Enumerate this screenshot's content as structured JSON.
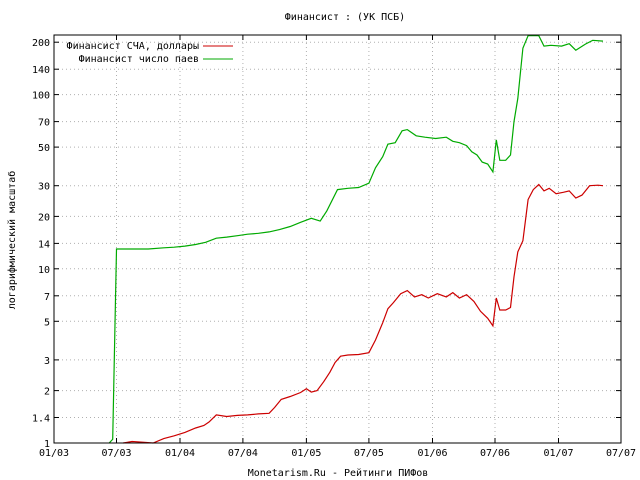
{
  "chart_data": {
    "type": "line",
    "title": "Финансист : (УК ПСБ)",
    "xlabel": "Monetarism.Ru - Рейтинги ПИФов",
    "ylabel": "логарифмический масштаб",
    "y_scale": "log",
    "ylim": [
      1,
      220
    ],
    "xlim": [
      "2003-01-01",
      "2007-07-01"
    ],
    "grid": true,
    "legend_position": "top-left",
    "x_ticks": [
      {
        "date": "2003-01-01",
        "label": "01/03"
      },
      {
        "date": "2003-07-01",
        "label": "07/03"
      },
      {
        "date": "2004-01-01",
        "label": "01/04"
      },
      {
        "date": "2004-07-01",
        "label": "07/04"
      },
      {
        "date": "2005-01-01",
        "label": "01/05"
      },
      {
        "date": "2005-07-01",
        "label": "07/05"
      },
      {
        "date": "2006-01-01",
        "label": "01/06"
      },
      {
        "date": "2006-07-01",
        "label": "07/06"
      },
      {
        "date": "2007-01-01",
        "label": "01/07"
      },
      {
        "date": "2007-07-01",
        "label": "07/07"
      }
    ],
    "y_ticks": [
      {
        "value": 1,
        "label": "1"
      },
      {
        "value": 1.4,
        "label": "1.4"
      },
      {
        "value": 2,
        "label": "2"
      },
      {
        "value": 3,
        "label": "3"
      },
      {
        "value": 5,
        "label": "5"
      },
      {
        "value": 7,
        "label": "7"
      },
      {
        "value": 10,
        "label": "10"
      },
      {
        "value": 14,
        "label": "14"
      },
      {
        "value": 20,
        "label": "20"
      },
      {
        "value": 30,
        "label": "30"
      },
      {
        "value": 50,
        "label": "50"
      },
      {
        "value": 70,
        "label": "70"
      },
      {
        "value": 100,
        "label": "100"
      },
      {
        "value": 140,
        "label": "140"
      },
      {
        "value": 200,
        "label": "200"
      }
    ],
    "series": [
      {
        "name": "Финансист СЧА, доллары",
        "color": "#cc0000",
        "points": [
          [
            "2003-07-20",
            1.0
          ],
          [
            "2003-08-15",
            1.02
          ],
          [
            "2003-09-15",
            1.01
          ],
          [
            "2003-10-15",
            1.0
          ],
          [
            "2003-11-15",
            1.06
          ],
          [
            "2003-12-15",
            1.1
          ],
          [
            "2004-01-15",
            1.15
          ],
          [
            "2004-02-15",
            1.22
          ],
          [
            "2004-03-10",
            1.26
          ],
          [
            "2004-03-25",
            1.32
          ],
          [
            "2004-04-15",
            1.45
          ],
          [
            "2004-05-15",
            1.42
          ],
          [
            "2004-06-15",
            1.44
          ],
          [
            "2004-07-15",
            1.45
          ],
          [
            "2004-08-15",
            1.47
          ],
          [
            "2004-09-15",
            1.48
          ],
          [
            "2004-10-01",
            1.6
          ],
          [
            "2004-10-20",
            1.78
          ],
          [
            "2004-11-15",
            1.85
          ],
          [
            "2004-12-15",
            1.95
          ],
          [
            "2005-01-01",
            2.05
          ],
          [
            "2005-01-15",
            1.96
          ],
          [
            "2005-02-01",
            2.0
          ],
          [
            "2005-02-20",
            2.25
          ],
          [
            "2005-03-10",
            2.55
          ],
          [
            "2005-03-25",
            2.9
          ],
          [
            "2005-04-10",
            3.15
          ],
          [
            "2005-05-01",
            3.2
          ],
          [
            "2005-06-01",
            3.22
          ],
          [
            "2005-07-01",
            3.3
          ],
          [
            "2005-07-20",
            3.9
          ],
          [
            "2005-08-10",
            4.9
          ],
          [
            "2005-08-25",
            5.9
          ],
          [
            "2005-09-10",
            6.4
          ],
          [
            "2005-10-01",
            7.2
          ],
          [
            "2005-10-20",
            7.5
          ],
          [
            "2005-11-10",
            6.9
          ],
          [
            "2005-12-01",
            7.1
          ],
          [
            "2005-12-20",
            6.8
          ],
          [
            "2006-01-15",
            7.2
          ],
          [
            "2006-02-10",
            6.9
          ],
          [
            "2006-03-01",
            7.3
          ],
          [
            "2006-03-20",
            6.8
          ],
          [
            "2006-04-10",
            7.1
          ],
          [
            "2006-05-01",
            6.5
          ],
          [
            "2006-05-20",
            5.7
          ],
          [
            "2006-06-10",
            5.2
          ],
          [
            "2006-06-25",
            4.7
          ],
          [
            "2006-07-05",
            6.8
          ],
          [
            "2006-07-15",
            5.8
          ],
          [
            "2006-08-01",
            5.8
          ],
          [
            "2006-08-15",
            6.0
          ],
          [
            "2006-08-25",
            9.0
          ],
          [
            "2006-09-05",
            12.5
          ],
          [
            "2006-09-20",
            14.5
          ],
          [
            "2006-10-05",
            25.0
          ],
          [
            "2006-10-20",
            28.5
          ],
          [
            "2006-11-05",
            30.5
          ],
          [
            "2006-11-20",
            28.0
          ],
          [
            "2006-12-05",
            29.0
          ],
          [
            "2006-12-25",
            27.0
          ],
          [
            "2007-01-15",
            27.5
          ],
          [
            "2007-02-01",
            28.0
          ],
          [
            "2007-02-20",
            25.5
          ],
          [
            "2007-03-10",
            26.5
          ],
          [
            "2007-04-01",
            30.0
          ],
          [
            "2007-04-25",
            30.2
          ],
          [
            "2007-05-10",
            30.0
          ]
        ]
      },
      {
        "name": "Финансист число паев",
        "color": "#00aa00",
        "points": [
          [
            "2003-06-10",
            1.0
          ],
          [
            "2003-06-20",
            1.05
          ],
          [
            "2003-07-01",
            13.0
          ],
          [
            "2003-08-15",
            13.0
          ],
          [
            "2003-10-01",
            13.0
          ],
          [
            "2003-11-15",
            13.2
          ],
          [
            "2003-12-15",
            13.3
          ],
          [
            "2004-01-15",
            13.5
          ],
          [
            "2004-02-15",
            13.8
          ],
          [
            "2004-03-15",
            14.2
          ],
          [
            "2004-04-15",
            15.0
          ],
          [
            "2004-05-15",
            15.2
          ],
          [
            "2004-06-15",
            15.5
          ],
          [
            "2004-07-15",
            15.8
          ],
          [
            "2004-08-15",
            16.0
          ],
          [
            "2004-09-15",
            16.3
          ],
          [
            "2004-10-15",
            16.8
          ],
          [
            "2004-11-15",
            17.5
          ],
          [
            "2004-12-15",
            18.5
          ],
          [
            "2005-01-15",
            19.5
          ],
          [
            "2005-02-10",
            18.8
          ],
          [
            "2005-03-01",
            21.5
          ],
          [
            "2005-04-01",
            28.5
          ],
          [
            "2005-05-01",
            29.0
          ],
          [
            "2005-06-01",
            29.3
          ],
          [
            "2005-07-01",
            31.0
          ],
          [
            "2005-07-20",
            38.0
          ],
          [
            "2005-08-10",
            44.0
          ],
          [
            "2005-08-25",
            52.0
          ],
          [
            "2005-09-15",
            53.0
          ],
          [
            "2005-10-05",
            62.0
          ],
          [
            "2005-10-20",
            63.0
          ],
          [
            "2005-11-15",
            58.0
          ],
          [
            "2005-12-10",
            57.0
          ],
          [
            "2006-01-10",
            56.0
          ],
          [
            "2006-02-10",
            57.0
          ],
          [
            "2006-03-01",
            54.0
          ],
          [
            "2006-03-20",
            53.0
          ],
          [
            "2006-04-10",
            51.0
          ],
          [
            "2006-04-25",
            47.0
          ],
          [
            "2006-05-10",
            45.0
          ],
          [
            "2006-05-25",
            41.0
          ],
          [
            "2006-06-10",
            40.0
          ],
          [
            "2006-06-25",
            36.0
          ],
          [
            "2006-07-05",
            55.0
          ],
          [
            "2006-07-15",
            42.0
          ],
          [
            "2006-08-01",
            42.0
          ],
          [
            "2006-08-15",
            45.0
          ],
          [
            "2006-08-25",
            70.0
          ],
          [
            "2006-09-05",
            95.0
          ],
          [
            "2006-09-20",
            185.0
          ],
          [
            "2006-10-05",
            218.0
          ],
          [
            "2006-10-20",
            218.0
          ],
          [
            "2006-11-05",
            218.0
          ],
          [
            "2006-11-20",
            190.0
          ],
          [
            "2006-12-10",
            192.0
          ],
          [
            "2007-01-10",
            190.0
          ],
          [
            "2007-02-01",
            196.0
          ],
          [
            "2007-02-20",
            180.0
          ],
          [
            "2007-03-20",
            195.0
          ],
          [
            "2007-04-10",
            205.0
          ],
          [
            "2007-05-10",
            203.0
          ]
        ]
      }
    ]
  }
}
